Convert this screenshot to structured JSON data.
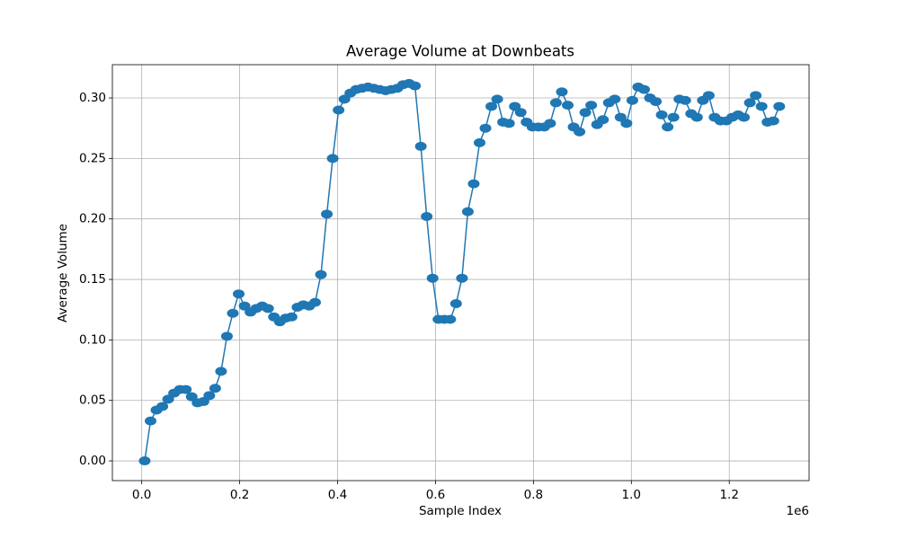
{
  "chart_data": {
    "type": "line",
    "title": "Average Volume at Downbeats",
    "x_label": "Sample Index",
    "y_label": "Average Volume",
    "x_offset_label": "1e6",
    "x": [
      6000,
      18000,
      30000,
      42000,
      54000,
      66000,
      78000,
      90000,
      102000,
      114000,
      126000,
      138000,
      150000,
      162000,
      174000,
      186000,
      198000,
      210000,
      222000,
      234000,
      246000,
      258000,
      270000,
      282000,
      294000,
      306000,
      318000,
      330000,
      342000,
      354000,
      366000,
      378000,
      390000,
      402000,
      414000,
      426000,
      438000,
      450000,
      462000,
      474000,
      486000,
      498000,
      510000,
      522000,
      534000,
      546000,
      558000,
      570000,
      582000,
      594000,
      606000,
      618000,
      630000,
      642000,
      654000,
      666000,
      678000,
      690000,
      702000,
      714000,
      726000,
      738000,
      750000,
      762000,
      774000,
      786000,
      798000,
      810000,
      822000,
      834000,
      846000,
      858000,
      870000,
      882000,
      894000,
      906000,
      918000,
      930000,
      942000,
      954000,
      966000,
      978000,
      990000,
      1002000,
      1014000,
      1026000,
      1038000,
      1050000,
      1062000,
      1074000,
      1086000,
      1098000,
      1110000,
      1122000,
      1134000,
      1146000,
      1158000,
      1170000,
      1182000,
      1194000,
      1206000,
      1218000,
      1230000,
      1242000,
      1254000,
      1266000,
      1278000,
      1290000,
      1302000
    ],
    "series": [
      {
        "name": "Average Volume",
        "color": "#1f77b4",
        "values": [
          0.0,
          0.033,
          0.042,
          0.045,
          0.051,
          0.056,
          0.059,
          0.059,
          0.053,
          0.048,
          0.049,
          0.054,
          0.06,
          0.074,
          0.103,
          0.122,
          0.138,
          0.128,
          0.123,
          0.126,
          0.128,
          0.126,
          0.119,
          0.115,
          0.118,
          0.119,
          0.127,
          0.129,
          0.128,
          0.131,
          0.154,
          0.204,
          0.25,
          0.29,
          0.299,
          0.304,
          0.307,
          0.308,
          0.309,
          0.308,
          0.307,
          0.306,
          0.307,
          0.308,
          0.311,
          0.312,
          0.31,
          0.26,
          0.202,
          0.151,
          0.117,
          0.117,
          0.117,
          0.13,
          0.151,
          0.206,
          0.229,
          0.263,
          0.275,
          0.293,
          0.299,
          0.28,
          0.279,
          0.293,
          0.288,
          0.28,
          0.276,
          0.276,
          0.276,
          0.279,
          0.296,
          0.305,
          0.294,
          0.276,
          0.272,
          0.288,
          0.294,
          0.278,
          0.282,
          0.296,
          0.299,
          0.284,
          0.279,
          0.298,
          0.309,
          0.307,
          0.3,
          0.297,
          0.286,
          0.276,
          0.284,
          0.299,
          0.298,
          0.287,
          0.284,
          0.298,
          0.302,
          0.284,
          0.281,
          0.281,
          0.284,
          0.286,
          0.284,
          0.296,
          0.302,
          0.293,
          0.28,
          0.281,
          0.293
        ]
      }
    ],
    "xlim": [
      -60000,
      1363000
    ],
    "xticks": [
      {
        "value": 0,
        "label": "0.0"
      },
      {
        "value": 200000,
        "label": "0.2"
      },
      {
        "value": 400000,
        "label": "0.4"
      },
      {
        "value": 600000,
        "label": "0.6"
      },
      {
        "value": 800000,
        "label": "0.8"
      },
      {
        "value": 1000000,
        "label": "1.0"
      },
      {
        "value": 1200000,
        "label": "1.2"
      }
    ],
    "ylim": [
      -0.0163,
      0.3275
    ],
    "yticks": [
      {
        "value": 0,
        "label": "0.00"
      },
      {
        "value": 0.05,
        "label": "0.05"
      },
      {
        "value": 0.1,
        "label": "0.10"
      },
      {
        "value": 0.15,
        "label": "0.15"
      },
      {
        "value": 0.2,
        "label": "0.20"
      },
      {
        "value": 0.25,
        "label": "0.25"
      },
      {
        "value": 0.3,
        "label": "0.30"
      }
    ],
    "grid": true,
    "marker": "o"
  }
}
